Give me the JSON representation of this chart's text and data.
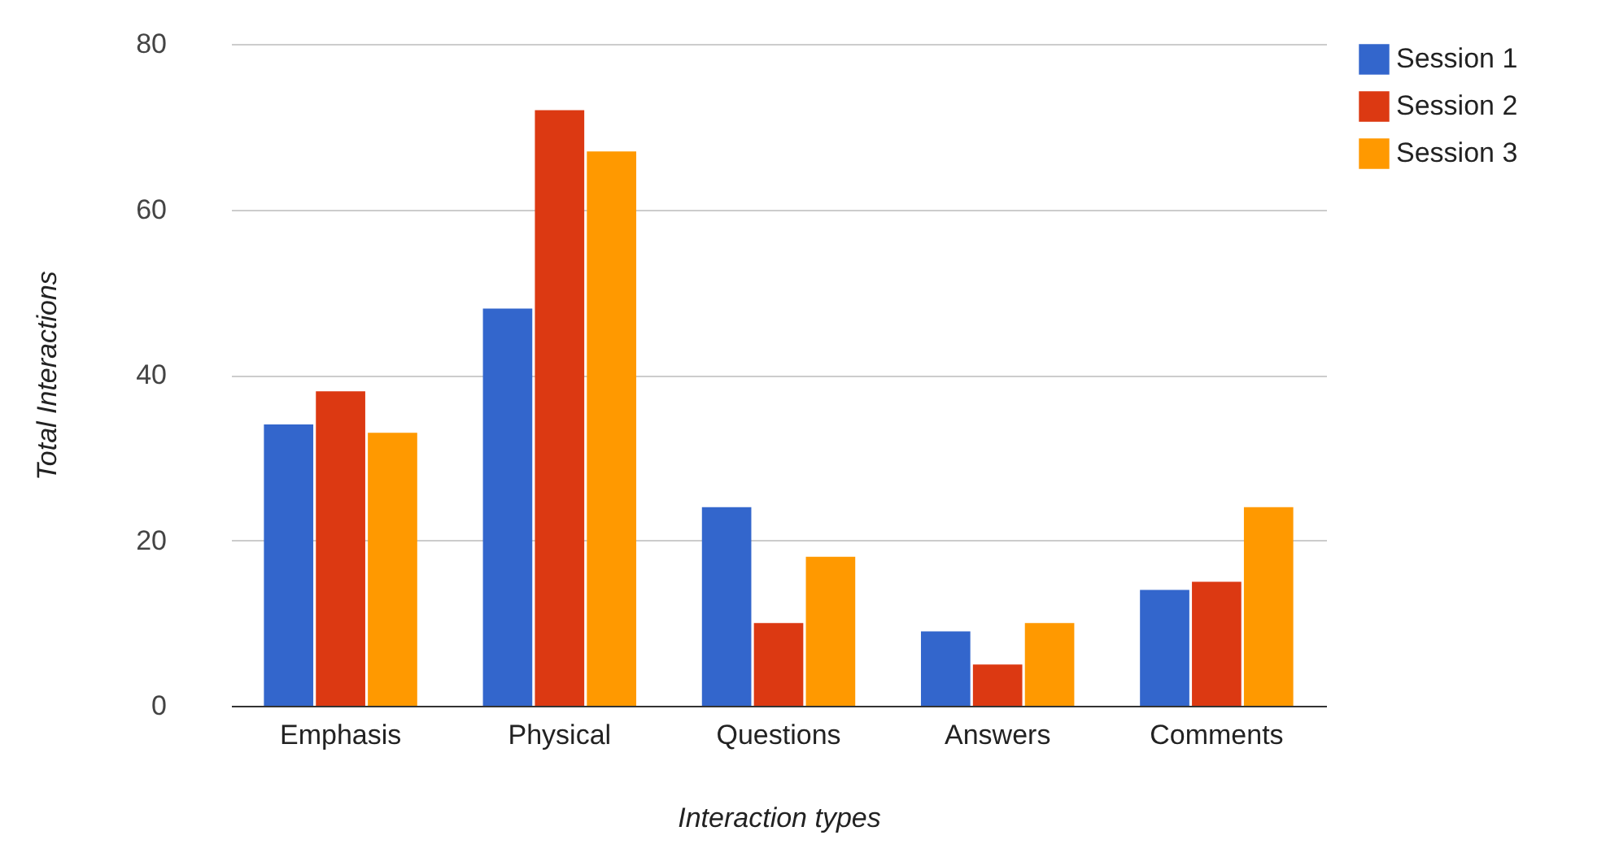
{
  "chart_data": {
    "type": "bar",
    "xlabel": "Interaction types",
    "ylabel": "Total Interactions",
    "categories": [
      "Emphasis",
      "Physical",
      "Questions",
      "Answers",
      "Comments"
    ],
    "series": [
      {
        "name": "Session 1",
        "color": "#3366cc",
        "values": [
          34,
          48,
          24,
          9,
          14
        ]
      },
      {
        "name": "Session 2",
        "color": "#dc3912",
        "values": [
          38,
          72,
          10,
          5,
          15
        ]
      },
      {
        "name": "Session 3",
        "color": "#ff9900",
        "values": [
          33,
          67,
          18,
          10,
          24
        ]
      }
    ],
    "ylim": [
      0,
      80
    ],
    "yticks": [
      0,
      20,
      40,
      60,
      80
    ],
    "grid": "y",
    "legend": "top right"
  }
}
